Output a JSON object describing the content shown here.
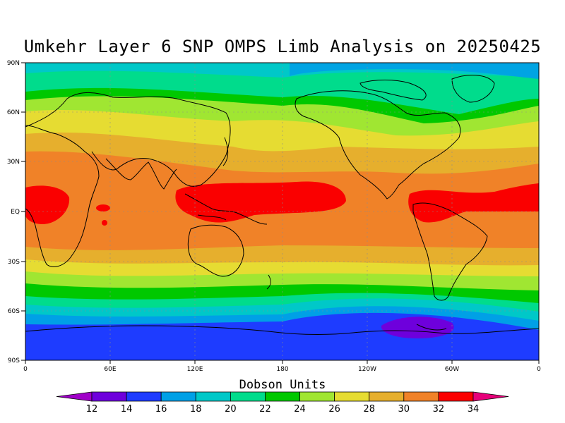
{
  "title": "Umkehr Layer 6 SNP OMPS Limb Analysis on 20250425",
  "colorbar": {
    "title": "Dobson Units",
    "levels": [
      "12",
      "14",
      "16",
      "18",
      "20",
      "22",
      "24",
      "26",
      "28",
      "30",
      "32",
      "34"
    ],
    "colors": [
      "#a000c8",
      "#6e00dc",
      "#1e3cff",
      "#00a0e6",
      "#00c8c8",
      "#00dc8c",
      "#00c800",
      "#a0e632",
      "#e6dc32",
      "#e6af2d",
      "#f08228",
      "#fa0000",
      "#e6007a"
    ]
  },
  "map": {
    "lat_labels": [
      "90N",
      "60N",
      "30N",
      "EQ",
      "30S",
      "60S",
      "90S"
    ],
    "lon_labels": [
      "0",
      "60E",
      "120E",
      "180",
      "120W",
      "60W",
      "0"
    ]
  }
}
